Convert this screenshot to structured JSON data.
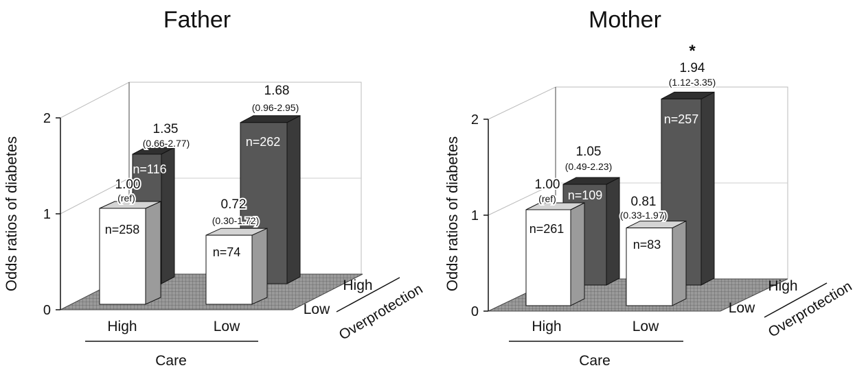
{
  "chart_data": [
    {
      "type": "bar",
      "title": "Father",
      "ylabel": "Odds ratios of diabetes",
      "ylim": [
        0,
        2
      ],
      "yticks": [
        "0",
        "1",
        "2"
      ],
      "x_axis_title": "Care",
      "depth_axis_title": "Overprotection",
      "categories": [
        "High",
        "Low"
      ],
      "depth_categories": [
        "Low",
        "High"
      ],
      "bars": [
        {
          "care": "High",
          "overprotection": "Low",
          "value": 1.0,
          "value_label": "1.00",
          "ci_label": "(ref)",
          "n_label": "n=258"
        },
        {
          "care": "High",
          "overprotection": "High",
          "value": 1.35,
          "value_label": "1.35",
          "ci_label": "(0.66-2.77)",
          "n_label": "n=116"
        },
        {
          "care": "Low",
          "overprotection": "Low",
          "value": 0.72,
          "value_label": "0.72",
          "ci_label": "(0.30-1.72)",
          "n_label": "n=74"
        },
        {
          "care": "Low",
          "overprotection": "High",
          "value": 1.68,
          "value_label": "1.68",
          "ci_label": "(0.96-2.95)",
          "n_label": "n=262"
        }
      ]
    },
    {
      "type": "bar",
      "title": "Mother",
      "ylabel": "Odds ratios of diabetes",
      "ylim": [
        0,
        2
      ],
      "yticks": [
        "0",
        "1",
        "2"
      ],
      "x_axis_title": "Care",
      "depth_axis_title": "Overprotection",
      "categories": [
        "High",
        "Low"
      ],
      "depth_categories": [
        "Low",
        "High"
      ],
      "bars": [
        {
          "care": "High",
          "overprotection": "Low",
          "value": 1.0,
          "value_label": "1.00",
          "ci_label": "(ref)",
          "n_label": "n=261"
        },
        {
          "care": "High",
          "overprotection": "High",
          "value": 1.05,
          "value_label": "1.05",
          "ci_label": "(0.49-2.23)",
          "n_label": "n=109"
        },
        {
          "care": "Low",
          "overprotection": "Low",
          "value": 0.81,
          "value_label": "0.81",
          "ci_label": "(0.33-1.97)",
          "n_label": "n=83"
        },
        {
          "care": "Low",
          "overprotection": "High",
          "value": 1.94,
          "value_label": "1.94",
          "ci_label": "(1.12-3.35)",
          "n_label": "n=257",
          "significance_mark": "*"
        }
      ]
    }
  ],
  "colors": {
    "front_bar_face": "#ffffff",
    "front_bar_side": "#9b9b9b",
    "front_bar_top": "#d4d4d4",
    "back_bar_face": "#575757",
    "back_bar_side": "#3a3a3a",
    "back_bar_top": "#2f2f2f",
    "floor": "#8a8a8a"
  }
}
